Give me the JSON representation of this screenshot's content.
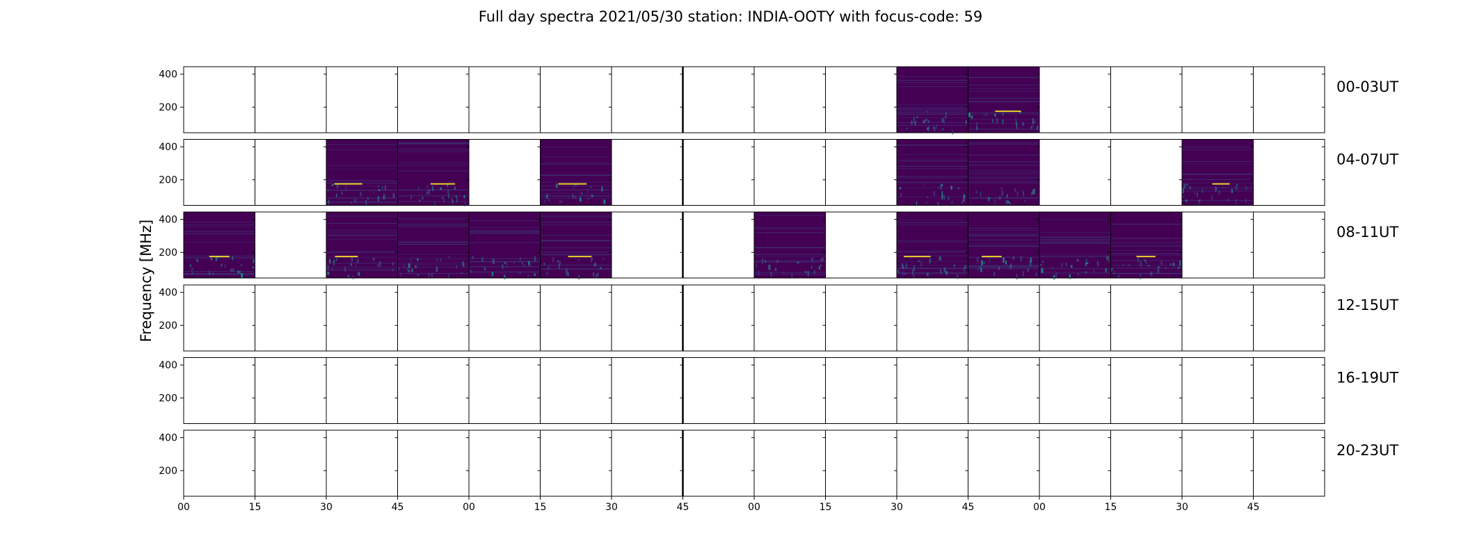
{
  "chart_data": {
    "type": "heatmap",
    "title": "Full day spectra 2021/05/30 station: INDIA-OOTY with focus-code: 59",
    "ylabel": "Frequency [MHz]",
    "yticks": [
      200,
      400
    ],
    "ylim": [
      45,
      445
    ],
    "xtick_labels": [
      "00",
      "15",
      "30",
      "45",
      "00",
      "15",
      "30",
      "45",
      "00",
      "15",
      "30",
      "45",
      "00",
      "15",
      "30",
      "45"
    ],
    "rows": [
      {
        "label": "00-03UT",
        "filled_panels": [
          10,
          11
        ]
      },
      {
        "label": "04-07UT",
        "filled_panels": [
          2,
          3,
          5,
          10,
          11,
          14
        ]
      },
      {
        "label": "08-11UT",
        "filled_panels": [
          0,
          2,
          3,
          4,
          5,
          8,
          10,
          11,
          12,
          13
        ]
      },
      {
        "label": "12-15UT",
        "filled_panels": []
      },
      {
        "label": "16-19UT",
        "filled_panels": []
      },
      {
        "label": "20-23UT",
        "filled_panels": []
      }
    ],
    "panels_per_row": 16,
    "colors": {
      "background": "#440154",
      "speckle": "#3b528b",
      "band": "#21918c",
      "bright": "#fde725",
      "frame": "#000000"
    }
  }
}
